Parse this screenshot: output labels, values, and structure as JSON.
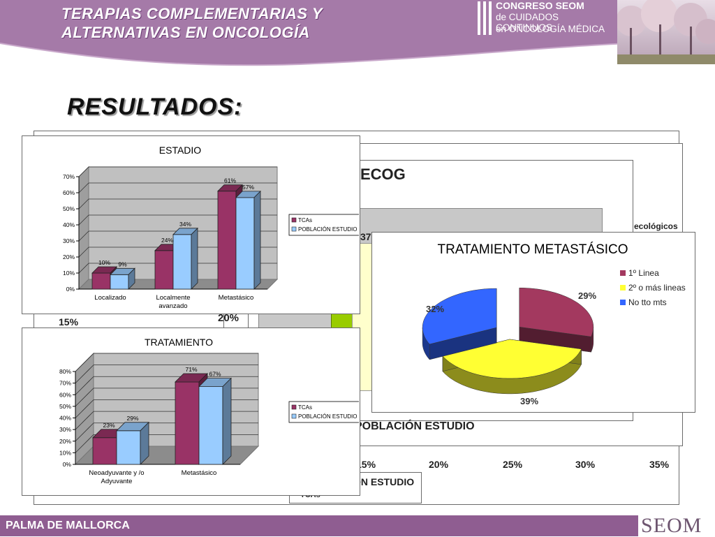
{
  "header": {
    "title_line1": "TERAPIAS COMPLEMENTARIAS Y",
    "title_line2": "ALTERNATIVAS EN ONCOLOGÍA",
    "congress_line1": "CONGRESO SEOM",
    "congress_line2": "de CUIDADOS CONTINUOS",
    "congress_line3": "en ONCOLOGÍA MÉDICA"
  },
  "section_title": "RESULTADOS:",
  "background_fragments": {
    "ecog_title": "ECOG",
    "ecologicos": "ecológicos",
    "pct_37": "37",
    "pct_15": "15%",
    "pct_20": "20%",
    "poblacion_estudio": "POBLACIÓN ESTUDIO",
    "legend_poblacion": "ON ESTUDIO",
    "legend_tcas": "TCAs",
    "axis_ticks": [
      "15%",
      "20%",
      "25%",
      "30%",
      "35%"
    ]
  },
  "footer": {
    "location": "PALMA DE MALLORCA",
    "logo": "SEOM"
  },
  "colors": {
    "header_purple": "#a57aa8",
    "tcas": "#993366",
    "poblacion": "#99ccff",
    "primera_linea": "#a3395f",
    "segunda_linea": "#ffff33",
    "no_tto": "#3366ff"
  },
  "chart_data": [
    {
      "type": "bar",
      "title": "ESTADIO",
      "categories": [
        "Localizado",
        "Localmente avanzado",
        "Metastásico"
      ],
      "category_lines": [
        [
          "Localizado"
        ],
        [
          "Localmente",
          "avanzado"
        ],
        [
          "Metastásico"
        ]
      ],
      "series": [
        {
          "name": "TCAs",
          "values": [
            10,
            24,
            61
          ],
          "labels": [
            "10%",
            "24%",
            "61%"
          ]
        },
        {
          "name": "POBLACIÓN ESTUDIO",
          "values": [
            9,
            34,
            57
          ],
          "labels": [
            "9%",
            "34%",
            "57%"
          ]
        }
      ],
      "yticks": [
        "0%",
        "10%",
        "20%",
        "30%",
        "40%",
        "50%",
        "60%",
        "70%"
      ],
      "ylim": [
        0,
        70
      ],
      "legend": "right"
    },
    {
      "type": "bar",
      "title": "TRATAMIENTO",
      "categories": [
        "Neoadyuvante y /o Adyuvante",
        "Metastásico"
      ],
      "category_lines": [
        [
          "Neoadyuvante y /o",
          "Adyuvante"
        ],
        [
          "Metastásico"
        ]
      ],
      "series": [
        {
          "name": "TCAs",
          "values": [
            23,
            71
          ],
          "labels": [
            "23%",
            "71%"
          ]
        },
        {
          "name": "POBLACIÓN ESTUDIO",
          "values": [
            29,
            67
          ],
          "labels": [
            "29%",
            "67%"
          ]
        }
      ],
      "yticks": [
        "0%",
        "10%",
        "20%",
        "30%",
        "40%",
        "50%",
        "60%",
        "70%",
        "80%"
      ],
      "ylim": [
        0,
        80
      ],
      "legend": "right"
    },
    {
      "type": "pie",
      "title": "TRATAMIENTO METASTÁSICO",
      "slices": [
        {
          "name": "1º Linea",
          "value": 29,
          "label": "29%"
        },
        {
          "name": "2º o más lineas",
          "value": 39,
          "label": "39%"
        },
        {
          "name": "No tto mts",
          "value": 32,
          "label": "32%"
        }
      ],
      "legend": "right"
    }
  ]
}
